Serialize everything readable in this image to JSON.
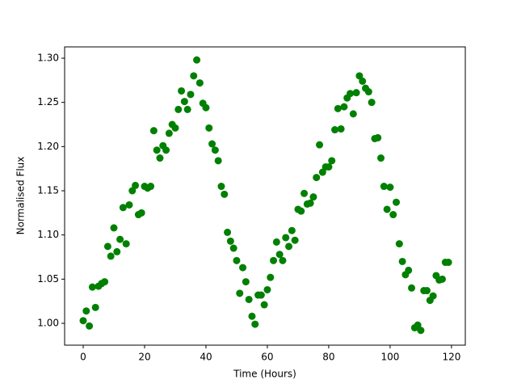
{
  "chart_data": {
    "type": "scatter",
    "xlabel": "Time (Hours)",
    "ylabel": "Normalised Flux",
    "color": "#008000",
    "grid": false,
    "xlim": [
      -6.05,
      124.5
    ],
    "ylim": [
      0.9753,
      1.3128
    ],
    "xticks": [
      0,
      20,
      40,
      60,
      80,
      100,
      120
    ],
    "yticks": [
      {
        "value": 1,
        "label": "1.00"
      },
      1.05,
      {
        "value": 1.1,
        "label": "1.10"
      },
      1.15,
      {
        "value": 1.2,
        "label": "1.20"
      },
      1.25,
      {
        "value": 1.3,
        "label": "1.30"
      }
    ],
    "x": [
      0,
      1,
      2,
      3,
      4,
      5,
      6,
      7,
      8,
      9,
      10,
      11,
      12,
      13,
      14,
      15,
      16,
      17,
      18,
      19,
      20,
      21,
      22,
      23,
      24,
      25,
      26,
      27,
      28,
      29,
      30,
      31,
      32,
      33,
      34,
      35,
      36,
      37,
      38,
      39,
      40,
      41,
      42,
      43,
      44,
      45,
      46,
      47,
      48,
      49,
      50,
      51,
      52,
      53,
      54,
      55,
      56,
      57,
      58,
      59,
      60,
      61,
      62,
      63,
      64,
      65,
      66,
      67,
      68,
      69,
      70,
      71,
      72,
      73,
      74,
      75,
      76,
      77,
      78,
      79,
      80,
      81,
      82,
      83,
      84,
      85,
      86,
      87,
      88,
      89,
      90,
      91,
      92,
      93,
      94,
      95,
      96,
      97,
      98,
      99,
      100,
      101,
      102,
      103,
      104,
      105,
      106,
      107,
      108,
      109,
      110,
      111,
      112,
      113,
      114,
      115,
      116,
      117,
      118,
      119
    ],
    "y": [
      1.003,
      1.014,
      0.997,
      1.041,
      1.018,
      1.042,
      1.045,
      1.047,
      1.087,
      1.076,
      1.108,
      1.081,
      1.095,
      1.131,
      1.09,
      1.134,
      1.15,
      1.156,
      1.123,
      1.125,
      1.155,
      1.153,
      1.155,
      1.218,
      1.196,
      1.187,
      1.201,
      1.196,
      1.215,
      1.225,
      1.221,
      1.242,
      1.263,
      1.251,
      1.242,
      1.259,
      1.28,
      1.298,
      1.272,
      1.249,
      1.244,
      1.221,
      1.203,
      1.196,
      1.184,
      1.155,
      1.146,
      1.103,
      1.093,
      1.085,
      1.071,
      1.034,
      1.063,
      1.047,
      1.027,
      1.008,
      0.999,
      1.032,
      1.032,
      1.021,
      1.038,
      1.052,
      1.071,
      1.092,
      1.078,
      1.071,
      1.097,
      1.087,
      1.105,
      1.094,
      1.129,
      1.127,
      1.147,
      1.135,
      1.136,
      1.143,
      1.165,
      1.202,
      1.171,
      1.177,
      1.177,
      1.184,
      1.219,
      1.243,
      1.22,
      1.245,
      1.255,
      1.26,
      1.237,
      1.261,
      1.28,
      1.274,
      1.266,
      1.262,
      1.25,
      1.209,
      1.21,
      1.187,
      1.155,
      1.129,
      1.154,
      1.123,
      1.137,
      1.09,
      1.07,
      1.055,
      1.06,
      1.04,
      0.995,
      0.998,
      0.992,
      1.037,
      1.037,
      1.026,
      1.031,
      1.054,
      1.049,
      1.05,
      1.069,
      1.069
    ]
  }
}
